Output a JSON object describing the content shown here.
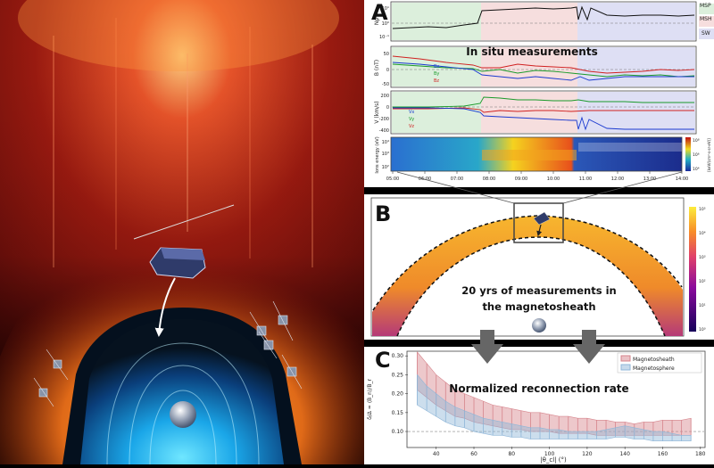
{
  "panel_a": {
    "letter": "A",
    "headline": "In situ measurements",
    "legend": [
      "MSP",
      "MSH",
      "SW"
    ],
    "y_labels": [
      "Np",
      "B (nT)",
      "V (km/s)",
      "Ions energy (eV)"
    ],
    "b_legend": [
      "Bx",
      "By",
      "Bz"
    ],
    "v_legend": [
      "Vx",
      "Vy",
      "Vz"
    ],
    "np_ticks": [
      "10¹",
      "10⁰",
      "10⁻¹"
    ],
    "b_ticks": [
      "50",
      "0",
      "-50"
    ],
    "v_ticks": [
      "200",
      "0",
      "-200",
      "-400"
    ],
    "e_ticks": [
      "10⁴",
      "10³",
      "10²"
    ],
    "cbar_ticks": [
      "10⁸",
      "10⁶",
      "10⁴"
    ],
    "cbar_label": "[keV/(cm²·s·sr·eV)]",
    "time_ticks": [
      "05:00",
      "06:00",
      "07:00",
      "08:00",
      "09:00",
      "10:00",
      "11:00",
      "12:00",
      "13:00",
      "14:00"
    ]
  },
  "panel_b": {
    "letter": "B",
    "caption": "20 yrs of measurements in the magnetosheath",
    "cbar_ticks": [
      "10⁵",
      "10⁴",
      "10³",
      "10²",
      "10¹",
      "10⁰"
    ]
  },
  "panel_c": {
    "letter": "C",
    "headline": "Normalized reconnection rate",
    "xlabel": "|θ_cl| (°)",
    "ylabel": "δ/Δ ≈ ⟨B_n⟩/B_r",
    "legend": [
      "Magnetosheath",
      "Magnetosphere"
    ]
  },
  "chart_data": {
    "type": "area",
    "xlabel": "|θ_cl| (°)",
    "ylabel": "δ/Δ ≈ ⟨B_n⟩/B_r",
    "xlim": [
      25,
      182
    ],
    "ylim": [
      0.06,
      0.31
    ],
    "x_ticks": [
      40,
      60,
      80,
      100,
      120,
      140,
      160,
      180
    ],
    "y_ticks": [
      0.1,
      0.15,
      0.2,
      0.25,
      0.3
    ],
    "reference_line": 0.1,
    "grid": false,
    "legend_position": "top-right",
    "x": [
      30,
      35,
      40,
      45,
      50,
      55,
      60,
      65,
      70,
      75,
      80,
      85,
      90,
      95,
      100,
      105,
      110,
      115,
      120,
      125,
      130,
      135,
      140,
      145,
      150,
      155,
      160,
      165,
      170,
      175
    ],
    "series": [
      {
        "name": "Magnetosheath",
        "color": "#d6848c",
        "upper": [
          0.31,
          0.28,
          0.25,
          0.23,
          0.21,
          0.2,
          0.19,
          0.18,
          0.17,
          0.165,
          0.16,
          0.155,
          0.15,
          0.15,
          0.145,
          0.14,
          0.14,
          0.135,
          0.135,
          0.13,
          0.13,
          0.125,
          0.125,
          0.12,
          0.125,
          0.125,
          0.13,
          0.13,
          0.13,
          0.135
        ],
        "lower": [
          0.21,
          0.19,
          0.17,
          0.155,
          0.14,
          0.135,
          0.125,
          0.12,
          0.115,
          0.11,
          0.105,
          0.105,
          0.1,
          0.1,
          0.1,
          0.095,
          0.095,
          0.095,
          0.095,
          0.09,
          0.09,
          0.09,
          0.09,
          0.09,
          0.09,
          0.09,
          0.09,
          0.09,
          0.09,
          0.09
        ]
      },
      {
        "name": "Magnetosphere",
        "color": "#8fb6d8",
        "upper": [
          0.25,
          0.22,
          0.2,
          0.18,
          0.165,
          0.155,
          0.145,
          0.135,
          0.13,
          0.125,
          0.12,
          0.115,
          0.11,
          0.11,
          0.105,
          0.105,
          0.1,
          0.1,
          0.1,
          0.1,
          0.105,
          0.11,
          0.115,
          0.11,
          0.105,
          0.1,
          0.1,
          0.095,
          0.09,
          0.09
        ],
        "lower": [
          0.17,
          0.155,
          0.14,
          0.125,
          0.115,
          0.11,
          0.1,
          0.095,
          0.09,
          0.09,
          0.085,
          0.085,
          0.08,
          0.08,
          0.08,
          0.08,
          0.08,
          0.08,
          0.08,
          0.08,
          0.08,
          0.085,
          0.085,
          0.08,
          0.08,
          0.075,
          0.075,
          0.075,
          0.075,
          0.075
        ]
      }
    ]
  }
}
